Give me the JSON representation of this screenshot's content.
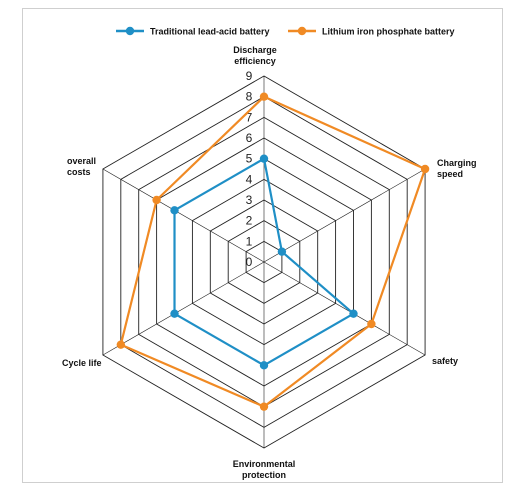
{
  "chart_data": {
    "type": "radar",
    "axes": [
      {
        "label_lines": [
          "Discharge",
          "efficiency"
        ]
      },
      {
        "label_lines": [
          "Charging",
          "speed"
        ]
      },
      {
        "label_lines": [
          "safety"
        ]
      },
      {
        "label_lines": [
          "Environmental",
          "protection"
        ]
      },
      {
        "label_lines": [
          "Cycle life"
        ]
      },
      {
        "label_lines": [
          "overall",
          "costs"
        ]
      }
    ],
    "scale": {
      "min": 0,
      "max": 9,
      "ticks": [
        "0",
        "1",
        "2",
        "3",
        "4",
        "5",
        "6",
        "7",
        "8",
        "9"
      ]
    },
    "series": [
      {
        "name": "Traditional lead-acid battery",
        "color": "#1f8fc6",
        "values": [
          5,
          1,
          5,
          5,
          5,
          5
        ]
      },
      {
        "name": "Lithium iron phosphate battery",
        "color": "#f08a24",
        "values": [
          8,
          9,
          6,
          7,
          8,
          6
        ]
      }
    ],
    "legend": "top",
    "grid_color": "#222222"
  }
}
